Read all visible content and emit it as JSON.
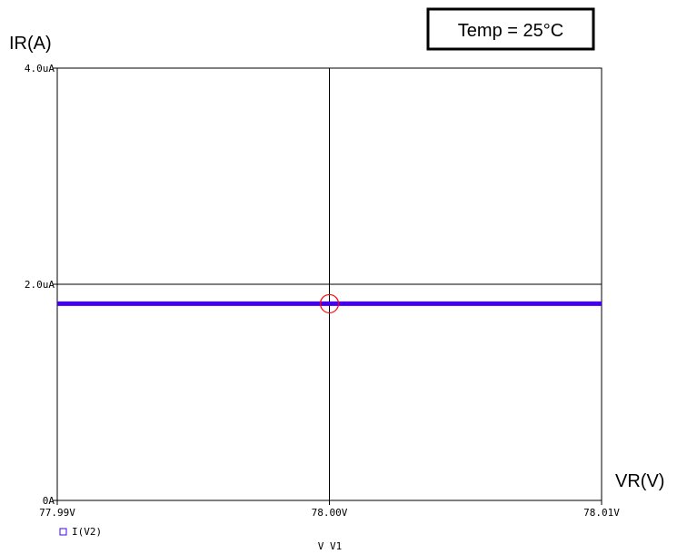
{
  "chart_data": {
    "type": "line",
    "ylabel": "IR(A)",
    "xlabel": "VR(V)",
    "x_axis_caption": "V V1",
    "annotation": "Temp = 25°C",
    "x": [
      77.99,
      78.0,
      78.01
    ],
    "xlim": [
      77.99,
      78.01
    ],
    "ylim": [
      0,
      4.0
    ],
    "x_ticks": [
      77.99,
      78.0,
      78.01
    ],
    "x_tick_labels": [
      "77.99V",
      "78.00V",
      "78.01V"
    ],
    "y_ticks": [
      0,
      2.0,
      4.0
    ],
    "y_tick_labels": [
      "0A",
      "2.0uA",
      "4.0uA"
    ],
    "y_unit": "uA",
    "grid": true,
    "series": [
      {
        "name": "I(V2)",
        "color": "#4400ee",
        "x": [
          77.99,
          78.0,
          78.01
        ],
        "y": [
          1.82,
          1.82,
          1.82
        ]
      }
    ],
    "marker": {
      "shape": "circle",
      "color": "#ff0000",
      "x": 78.0,
      "y": 1.82
    },
    "legend_position": "bottom-left"
  }
}
